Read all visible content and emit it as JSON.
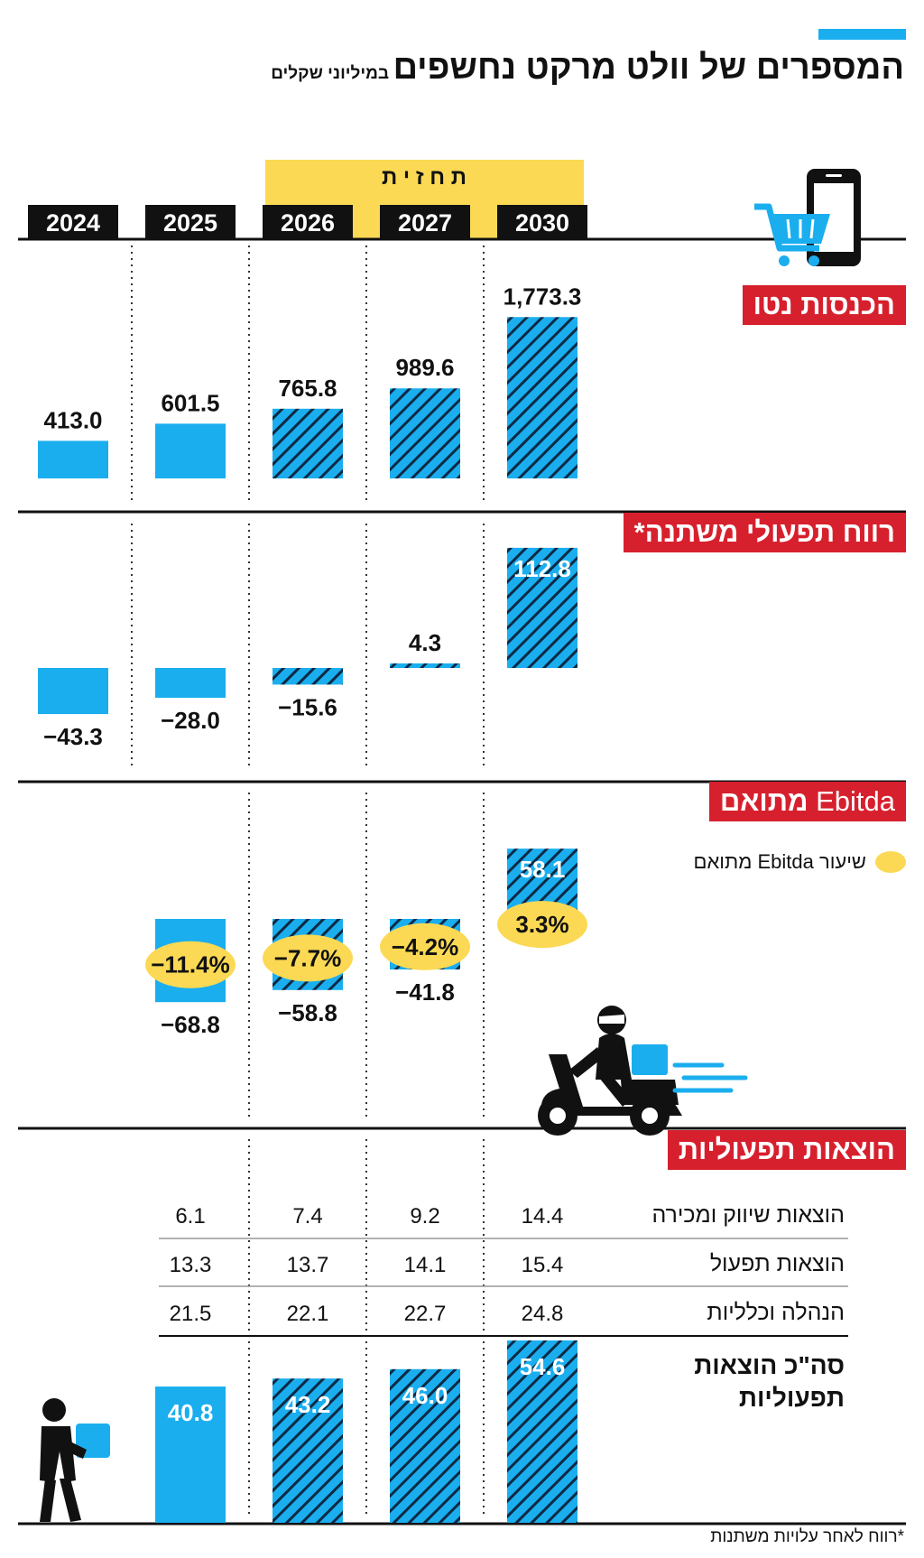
{
  "title": "המספרים של וולט מרקט נחשפים",
  "subtitle": "במיליוני שקלים",
  "forecast_label": "ת ח ז י ת",
  "years": [
    "2024",
    "2025",
    "2026",
    "2027",
    "2030"
  ],
  "forecast_years": [
    "2026",
    "2027",
    "2030"
  ],
  "sections": {
    "revenue": "הכנסות נטו",
    "op_profit": "רווח תפעולי משתנה*",
    "ebitda_prefix": "Ebitda",
    "ebitda_suffix": "מתואם",
    "expenses": "הוצאות תפעוליות"
  },
  "legend_label": "שיעור Ebitda מתואם",
  "total_label_line1": "סה\"כ הוצאות",
  "total_label_line2": "תפעוליות",
  "footnote": "*רווח לאחר עלויות משתנות",
  "colors": {
    "accent": "#1aaeef",
    "highlight": "#fbd954",
    "label_red": "#d7202d",
    "text": "#111111"
  },
  "icons": [
    "smartphone-cart-icon",
    "delivery-scooter-icon",
    "courier-person-icon"
  ],
  "chart_data": [
    {
      "type": "bar",
      "title": "הכנסות נטו",
      "categories": [
        "2024",
        "2025",
        "2026",
        "2027",
        "2030"
      ],
      "values": [
        413.0,
        601.5,
        765.8,
        989.6,
        1773.3
      ],
      "labels": [
        "413.0",
        "601.5",
        "765.8",
        "989.6",
        "1,773.3"
      ]
    },
    {
      "type": "bar",
      "title": "רווח תפעולי משתנה*",
      "categories": [
        "2024",
        "2025",
        "2026",
        "2027",
        "2030"
      ],
      "values": [
        -43.3,
        -28.0,
        -15.6,
        4.3,
        112.8
      ],
      "labels": [
        "−43.3",
        "−28.0",
        "−15.6",
        "4.3",
        "112.8"
      ]
    },
    {
      "type": "bar",
      "title": "Ebitda מתואם",
      "categories": [
        "2025",
        "2026",
        "2027",
        "2030"
      ],
      "values": [
        -68.8,
        -58.8,
        -41.8,
        58.1
      ],
      "labels": [
        "−68.8",
        "−58.8",
        "−41.8",
        "58.1"
      ],
      "margin_labels": [
        "−11.4%",
        "−7.7%",
        "−4.2%",
        "3.3%"
      ]
    },
    {
      "type": "table",
      "title": "הוצאות תפעוליות",
      "columns": [
        "2025",
        "2026",
        "2027",
        "2030"
      ],
      "rows": [
        {
          "label": "הוצאות שיווק ומכירה",
          "values": [
            "6.1",
            "7.4",
            "9.2",
            "14.4"
          ]
        },
        {
          "label": "הוצאות תפעול",
          "values": [
            "13.3",
            "13.7",
            "14.1",
            "15.4"
          ]
        },
        {
          "label": "הנהלה וכלליות",
          "values": [
            "21.5",
            "22.1",
            "22.7",
            "24.8"
          ]
        }
      ]
    },
    {
      "type": "bar",
      "title": "סה\"כ הוצאות תפעוליות",
      "categories": [
        "2025",
        "2026",
        "2027",
        "2030"
      ],
      "values": [
        40.8,
        43.2,
        46.0,
        54.6
      ],
      "labels": [
        "40.8",
        "43.2",
        "46.0",
        "54.6"
      ]
    }
  ]
}
